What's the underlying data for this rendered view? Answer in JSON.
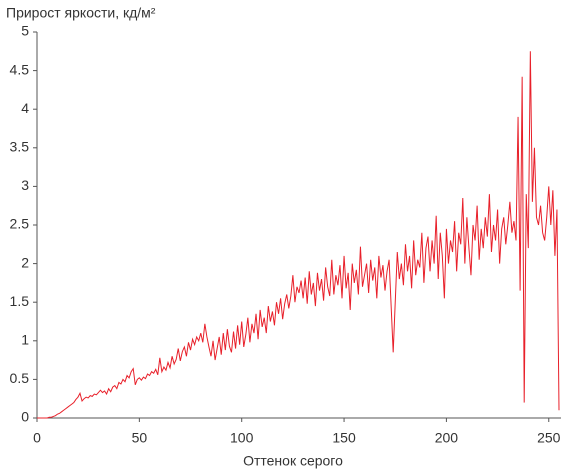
{
  "chart_data": {
    "type": "line",
    "title": "Прирост яркости, кд/м²",
    "x_label": "Оттенок серого",
    "x": [
      0,
      1,
      2,
      3,
      4,
      5,
      6,
      7,
      8,
      9,
      10,
      11,
      12,
      13,
      14,
      15,
      16,
      17,
      18,
      19,
      20,
      21,
      22,
      23,
      24,
      25,
      26,
      27,
      28,
      29,
      30,
      31,
      32,
      33,
      34,
      35,
      36,
      37,
      38,
      39,
      40,
      41,
      42,
      43,
      44,
      45,
      46,
      47,
      48,
      49,
      50,
      51,
      52,
      53,
      54,
      55,
      56,
      57,
      58,
      59,
      60,
      61,
      62,
      63,
      64,
      65,
      66,
      67,
      68,
      69,
      70,
      71,
      72,
      73,
      74,
      75,
      76,
      77,
      78,
      79,
      80,
      81,
      82,
      83,
      84,
      85,
      86,
      87,
      88,
      89,
      90,
      91,
      92,
      93,
      94,
      95,
      96,
      97,
      98,
      99,
      100,
      101,
      102,
      103,
      104,
      105,
      106,
      107,
      108,
      109,
      110,
      111,
      112,
      113,
      114,
      115,
      116,
      117,
      118,
      119,
      120,
      121,
      122,
      123,
      124,
      125,
      126,
      127,
      128,
      129,
      130,
      131,
      132,
      133,
      134,
      135,
      136,
      137,
      138,
      139,
      140,
      141,
      142,
      143,
      144,
      145,
      146,
      147,
      148,
      149,
      150,
      151,
      152,
      153,
      154,
      155,
      156,
      157,
      158,
      159,
      160,
      161,
      162,
      163,
      164,
      165,
      166,
      167,
      168,
      169,
      170,
      171,
      172,
      173,
      174,
      175,
      176,
      177,
      178,
      179,
      180,
      181,
      182,
      183,
      184,
      185,
      186,
      187,
      188,
      189,
      190,
      191,
      192,
      193,
      194,
      195,
      196,
      197,
      198,
      199,
      200,
      201,
      202,
      203,
      204,
      205,
      206,
      207,
      208,
      209,
      210,
      211,
      212,
      213,
      214,
      215,
      216,
      217,
      218,
      219,
      220,
      221,
      222,
      223,
      224,
      225,
      226,
      227,
      228,
      229,
      230,
      231,
      232,
      233,
      234,
      235,
      236,
      237,
      238,
      239,
      240,
      241,
      242,
      243,
      244,
      245,
      246,
      247,
      248,
      249,
      250,
      251,
      252,
      253,
      254,
      255
    ],
    "series": [
      {
        "color": "#e8202a",
        "values": [
          0,
          0,
          0,
          0,
          0,
          0,
          0.01,
          0.01,
          0.02,
          0.03,
          0.05,
          0.06,
          0.08,
          0.1,
          0.12,
          0.14,
          0.16,
          0.18,
          0.2,
          0.24,
          0.27,
          0.32,
          0.22,
          0.25,
          0.27,
          0.26,
          0.29,
          0.28,
          0.31,
          0.3,
          0.33,
          0.36,
          0.33,
          0.35,
          0.31,
          0.38,
          0.34,
          0.4,
          0.42,
          0.38,
          0.46,
          0.44,
          0.5,
          0.47,
          0.55,
          0.52,
          0.6,
          0.64,
          0.43,
          0.5,
          0.52,
          0.49,
          0.53,
          0.51,
          0.57,
          0.55,
          0.6,
          0.58,
          0.63,
          0.56,
          0.78,
          0.6,
          0.66,
          0.62,
          0.72,
          0.65,
          0.8,
          0.7,
          0.76,
          0.9,
          0.74,
          0.86,
          0.92,
          0.8,
          0.98,
          0.88,
          1.02,
          0.95,
          1.05,
          1.0,
          1.1,
          0.98,
          1.22,
          1.05,
          0.92,
          0.8,
          1.0,
          0.75,
          0.9,
          1.05,
          0.82,
          1.1,
          0.88,
          1.15,
          0.93,
          0.85,
          1.12,
          0.9,
          1.2,
          0.95,
          1.25,
          0.92,
          1.08,
          1.3,
          0.98,
          1.22,
          1.1,
          1.35,
          1.02,
          1.4,
          1.18,
          1.3,
          1.1,
          1.45,
          1.25,
          1.38,
          1.2,
          1.5,
          1.35,
          1.55,
          1.28,
          1.48,
          1.6,
          1.42,
          1.58,
          1.85,
          1.5,
          1.7,
          1.62,
          1.78,
          1.55,
          1.82,
          1.48,
          1.9,
          1.6,
          1.75,
          1.45,
          1.88,
          1.65,
          1.8,
          1.52,
          1.95,
          1.7,
          1.58,
          2.05,
          1.6,
          1.85,
          1.72,
          1.98,
          1.55,
          2.1,
          1.68,
          1.88,
          1.4,
          2.0,
          1.75,
          1.92,
          1.6,
          2.22,
          1.7,
          1.85,
          2.0,
          1.62,
          2.05,
          1.78,
          1.95,
          1.55,
          2.1,
          1.82,
          1.98,
          1.65,
          1.9,
          2.05,
          1.45,
          0.85,
          1.5,
          2.15,
          1.8,
          2.0,
          1.72,
          2.25,
          1.9,
          2.1,
          1.68,
          2.3,
          1.85,
          2.05,
          1.95,
          2.4,
          1.75,
          2.2,
          2.35,
          1.9,
          2.3,
          2.0,
          2.62,
          1.8,
          2.4,
          2.1,
          1.55,
          2.45,
          2.0,
          2.3,
          2.15,
          2.55,
          1.9,
          2.4,
          2.25,
          2.85,
          2.0,
          2.6,
          2.2,
          1.85,
          2.5,
          2.3,
          2.75,
          2.05,
          2.45,
          2.2,
          2.6,
          2.35,
          2.9,
          2.15,
          2.5,
          2.3,
          2.7,
          2.0,
          2.45,
          2.6,
          2.25,
          2.5,
          2.8,
          2.4,
          2.55,
          2.3,
          3.9,
          1.65,
          4.42,
          0.2,
          2.9,
          2.2,
          4.75,
          2.8,
          3.5,
          2.6,
          2.5,
          2.75,
          2.4,
          2.3,
          2.6,
          3.0,
          2.5,
          2.95,
          2.1,
          2.7,
          0.1
        ]
      }
    ],
    "xlim": [
      0,
      255
    ],
    "ylim": [
      0,
      5
    ],
    "xticks": [
      0,
      50,
      100,
      150,
      200,
      250
    ],
    "yticks": [
      0,
      0.5,
      1,
      1.5,
      2,
      2.5,
      3,
      3.5,
      4,
      4.5,
      5
    ]
  }
}
